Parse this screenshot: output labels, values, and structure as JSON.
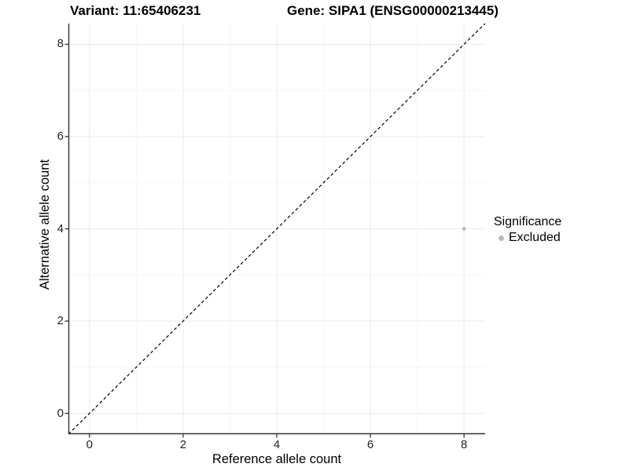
{
  "title": {
    "variant": "Variant: 11:65406231",
    "gene": "Gene: SIPA1 (ENSG00000213445)"
  },
  "x_axis": {
    "label": "Reference allele count",
    "tick_labels": [
      "0",
      "2",
      "4",
      "6",
      "8"
    ]
  },
  "y_axis": {
    "label": "Alternative allele count",
    "tick_labels": [
      "0",
      "2",
      "4",
      "6",
      "8"
    ]
  },
  "legend": {
    "title": "Significance",
    "items": [
      {
        "label": "Excluded",
        "color": "#b9b9b9"
      }
    ]
  },
  "chart_data": {
    "type": "scatter",
    "title": "Variant: 11:65406231    Gene: SIPA1 (ENSG00000213445)",
    "xlabel": "Reference allele count",
    "ylabel": "Alternative allele count",
    "xlim": [
      -0.45,
      8.45
    ],
    "ylim": [
      -0.45,
      8.45
    ],
    "x_ticks": [
      0,
      2,
      4,
      6,
      8
    ],
    "y_ticks": [
      0,
      2,
      4,
      6,
      8
    ],
    "x_minor_ticks": [
      1,
      3,
      5,
      7
    ],
    "y_minor_ticks": [
      1,
      3,
      5,
      7
    ],
    "series": [
      {
        "name": "Excluded",
        "color": "#b9b9b9",
        "points": [
          {
            "x": 8,
            "y": 4
          }
        ]
      }
    ],
    "reference_line": {
      "type": "identity",
      "style": "dashed",
      "color": "#000000"
    },
    "grid": "major+minor",
    "legend_position": "right",
    "legend_title": "Significance"
  },
  "colors": {
    "background": "#ffffff",
    "axis_line": "#333333",
    "grid_major": "#ebebeb",
    "grid_minor": "#f6f6f6",
    "tick_text": "#262626",
    "point": "#b9b9b9"
  }
}
